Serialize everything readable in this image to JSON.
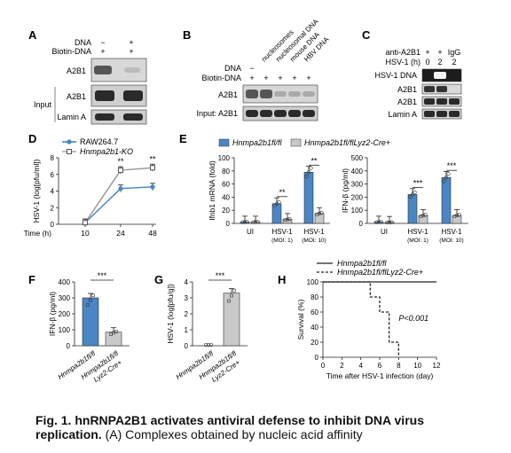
{
  "colors": {
    "blue": "#4a86c5",
    "gray": "#c9c9c9",
    "blot_dark": "#2a2a2a"
  },
  "panelA": {
    "letter": "A",
    "row_labels": [
      "DNA",
      "Biotin-DNA"
    ],
    "lane_signs": [
      [
        "−",
        "+"
      ],
      [
        "+",
        "+"
      ]
    ],
    "blot_labels": [
      "A2B1",
      "A2B1",
      "Lamin A"
    ],
    "input_label": "Input"
  },
  "panelB": {
    "letter": "B",
    "col_labels": [
      "nucleosomes",
      "nucleosomal DNA",
      "mouse DNA",
      "HBV DNA"
    ],
    "row_labels": [
      "DNA",
      "Biotin-DNA"
    ],
    "lane_signs": [
      [
        "−",
        "",
        "",
        "",
        ""
      ],
      [
        "+",
        "+",
        "+",
        "+",
        "+"
      ]
    ],
    "blot_labels": [
      "A2B1",
      "Input: A2B1"
    ]
  },
  "panelC": {
    "letter": "C",
    "row_labels": [
      "anti-A2B1",
      "HSV-1 (h)"
    ],
    "lane_values": [
      [
        "+",
        "+",
        "IgG"
      ],
      [
        "0",
        "2",
        "2"
      ]
    ],
    "blot_labels": [
      "HSV-1 DNA",
      "A2B1",
      "A2B1",
      "Lamin A"
    ]
  },
  "panelD": {
    "letter": "D",
    "legend": [
      "RAW264.7",
      "Hnmpa2b1-KO"
    ],
    "ylabel": "HSV-1 (log[pfu/ml])",
    "xlabel": "Time (h)",
    "yticks": [
      "0",
      "2",
      "4",
      "6",
      "8"
    ],
    "xticks": [
      "10",
      "24",
      "48"
    ],
    "sig": [
      "**",
      "**"
    ]
  },
  "panelE": {
    "letter": "E",
    "legend": [
      "Hnmpa2b1fl/fl",
      "Hnmpa2b1fl/flLyz2-Cre+"
    ],
    "left_ylabel": "Ifnb1 mRNA (fold)",
    "left_yticks": [
      "0",
      "20",
      "40",
      "60",
      "80",
      "100"
    ],
    "right_ylabel": "IFN-β (pg/ml)",
    "right_yticks": [
      "0",
      "100",
      "200",
      "300",
      "400",
      "500"
    ],
    "categories": [
      "UI",
      "HSV-1",
      "HSV-1"
    ],
    "subcats": [
      "",
      "(MOI: 1)",
      "(MOI: 10)"
    ],
    "sig": [
      "**",
      "**",
      "***",
      "***"
    ]
  },
  "panelF": {
    "letter": "F",
    "ylabel": "IFN-β (pg/ml)",
    "yticks": [
      "0",
      "100",
      "200",
      "300",
      "400"
    ],
    "xlabels": [
      "Hnmpa2b1fl/fl",
      "Hnmpa2b1fl/fl",
      "Lyz2-Cre+"
    ],
    "sig": "***"
  },
  "panelG": {
    "letter": "G",
    "ylabel": "HSV-1 (log[pfu/g])",
    "yticks": [
      "0",
      "1",
      "2",
      "3",
      "4"
    ],
    "xlabels": [
      "Hnmpa2b1fl/fl",
      "Hnmpa2b1fl/fl",
      "Lyz2-Cre+"
    ],
    "sig": "***"
  },
  "panelH": {
    "letter": "H",
    "legend": [
      "Hnmpa2b1fl/fl",
      "Hnmpa2b1fl/flLyz2-Cre+"
    ],
    "ylabel": "Survival (%)",
    "xlabel": "Time after HSV-1 infection (day)",
    "yticks": [
      "0",
      "20",
      "40",
      "60",
      "80",
      "100"
    ],
    "xticks": [
      "0",
      "2",
      "4",
      "6",
      "8",
      "10",
      "12"
    ],
    "pvalue": "P<0.001"
  },
  "caption": {
    "bold": "Fig. 1. hnRNPA2B1 activates antiviral defense to inhibit DNA virus replication.",
    "rest": "(A) Complexes obtained by nucleic acid affinity"
  },
  "chart_data": [
    {
      "type": "line",
      "panel": "D",
      "x": [
        10,
        24,
        48
      ],
      "series": [
        {
          "name": "RAW264.7",
          "values": [
            0.2,
            4.3,
            4.5
          ]
        },
        {
          "name": "Hnmpa2b1-KO",
          "values": [
            0.2,
            6.5,
            6.8
          ]
        }
      ],
      "ylim": [
        0,
        8
      ]
    },
    {
      "type": "bar",
      "panel": "E-left",
      "categories": [
        "UI",
        "HSV-1 (MOI: 1)",
        "HSV-1 (MOI: 10)"
      ],
      "series": [
        {
          "name": "Hnmpa2b1fl/fl",
          "values": [
            2,
            30,
            78
          ]
        },
        {
          "name": "Hnmpa2b1fl/flLyz2-Cre+",
          "values": [
            2,
            6,
            15
          ]
        }
      ],
      "ylim": [
        0,
        100
      ]
    },
    {
      "type": "bar",
      "panel": "E-right",
      "categories": [
        "UI",
        "HSV-1 (MOI: 1)",
        "HSV-1 (MOI: 10)"
      ],
      "series": [
        {
          "name": "Hnmpa2b1fl/fl",
          "values": [
            10,
            220,
            350
          ]
        },
        {
          "name": "Hnmpa2b1fl/flLyz2-Cre+",
          "values": [
            8,
            60,
            60
          ]
        }
      ],
      "ylim": [
        0,
        500
      ]
    },
    {
      "type": "bar",
      "panel": "F",
      "categories": [
        "Hnmpa2b1fl/fl",
        "Hnmpa2b1fl/fl Lyz2-Cre+"
      ],
      "values": [
        300,
        85
      ],
      "ylim": [
        0,
        400
      ]
    },
    {
      "type": "bar",
      "panel": "G",
      "categories": [
        "Hnmpa2b1fl/fl",
        "Hnmpa2b1fl/fl Lyz2-Cre+"
      ],
      "values": [
        0,
        3.3
      ],
      "ylim": [
        0,
        4
      ]
    },
    {
      "type": "line",
      "panel": "H",
      "series": [
        {
          "name": "Hnmpa2b1fl/fl",
          "x": [
            0,
            12
          ],
          "values": [
            100,
            100
          ]
        },
        {
          "name": "Hnmpa2b1fl/flLyz2-Cre+",
          "x": [
            0,
            5,
            5,
            6,
            6,
            7,
            7,
            8,
            8
          ],
          "values": [
            100,
            100,
            80,
            80,
            60,
            60,
            20,
            20,
            0
          ]
        }
      ],
      "xlim": [
        0,
        12
      ],
      "ylim": [
        0,
        100
      ]
    }
  ]
}
